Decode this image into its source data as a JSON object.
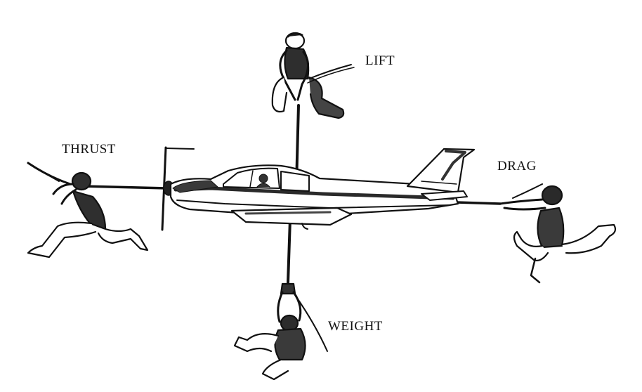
{
  "diagram": {
    "forces": {
      "lift": {
        "label": "LIFT"
      },
      "thrust": {
        "label": "THRUST"
      },
      "drag": {
        "label": "DRAG"
      },
      "weight": {
        "label": "WEIGHT"
      }
    },
    "colors": {
      "ink": "#111111",
      "background": "#ffffff",
      "shade": "#555555"
    }
  }
}
